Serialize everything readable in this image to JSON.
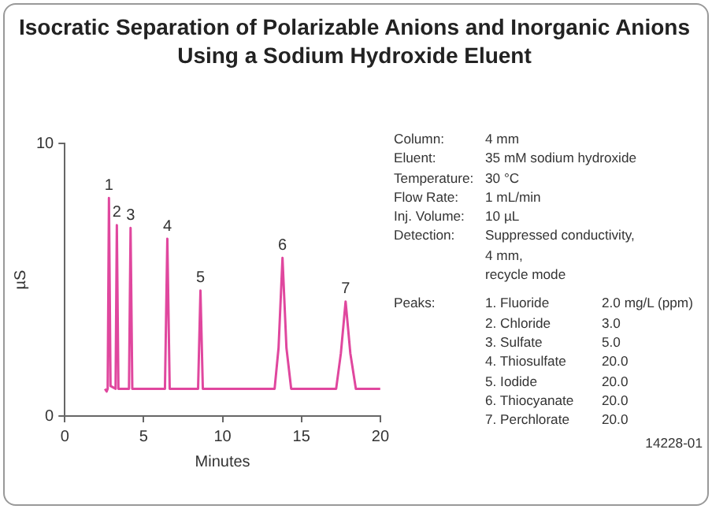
{
  "chart_data": {
    "type": "line",
    "title": "Isocratic Separation of Polarizable Anions and Inorganic Anions Using a Sodium Hydroxide Eluent",
    "xlabel": "Minutes",
    "ylabel": "µS",
    "series": [
      {
        "color": "#e0479e",
        "x": [
          2.55,
          2.65,
          2.72,
          2.8,
          2.9,
          3.22,
          3.3,
          3.4,
          4.07,
          4.17,
          4.28,
          6.35,
          6.5,
          6.65,
          8.45,
          8.6,
          8.75,
          13.3,
          13.55,
          13.8,
          14.05,
          14.35,
          17.2,
          17.5,
          17.8,
          18.1,
          18.45,
          20
        ],
        "values": [
          1.0,
          0.9,
          1.0,
          8.0,
          1.1,
          1.0,
          7.0,
          1.0,
          1.0,
          6.9,
          1.0,
          1.0,
          6.5,
          1.0,
          1.0,
          4.6,
          1.0,
          1.0,
          2.5,
          5.8,
          2.5,
          1.0,
          1.0,
          2.3,
          4.2,
          2.3,
          1.0,
          1.0
        ]
      }
    ],
    "xlim": [
      0,
      20
    ],
    "xticks": [
      0,
      5,
      10,
      15,
      20
    ],
    "ylim": [
      0,
      10
    ],
    "yticks": [
      0,
      10
    ],
    "grid": false,
    "legend": false,
    "marker": "none",
    "line_style": "solid",
    "annotations": [
      {
        "text": "1",
        "x": 2.8,
        "y": 8.0
      },
      {
        "text": "2",
        "x": 3.3,
        "y": 7.0
      },
      {
        "text": "3",
        "x": 4.17,
        "y": 6.9
      },
      {
        "text": "4",
        "x": 6.5,
        "y": 6.5
      },
      {
        "text": "5",
        "x": 8.6,
        "y": 4.6
      },
      {
        "text": "6",
        "x": 13.8,
        "y": 5.8
      },
      {
        "text": "7",
        "x": 17.8,
        "y": 4.2
      },
      "Column:\t4 mm",
      "Eluent:\t35 mM sodium hydroxide",
      "Temperature:\t30 °C",
      "Flow Rate:\t1 mL/min",
      "Inj. Volume:\t10 µL",
      "Detection:\tSuppressed conductivity,",
      "\t4 mm,",
      "\trecycle mode",
      "Peaks:\t1. Fluoride\t2.0 mg/L (ppm)",
      "\t2. Chloride\t3.0",
      "\t3. Sulfate\t5.0",
      "\t4. Thiosulfate\t20.0",
      "\t5. Iodide\t20.0",
      "\t6. Thiocyanate\t20.0",
      "\t7. Perchlorate\t20.0",
      "14228-01"
    ]
  }
}
